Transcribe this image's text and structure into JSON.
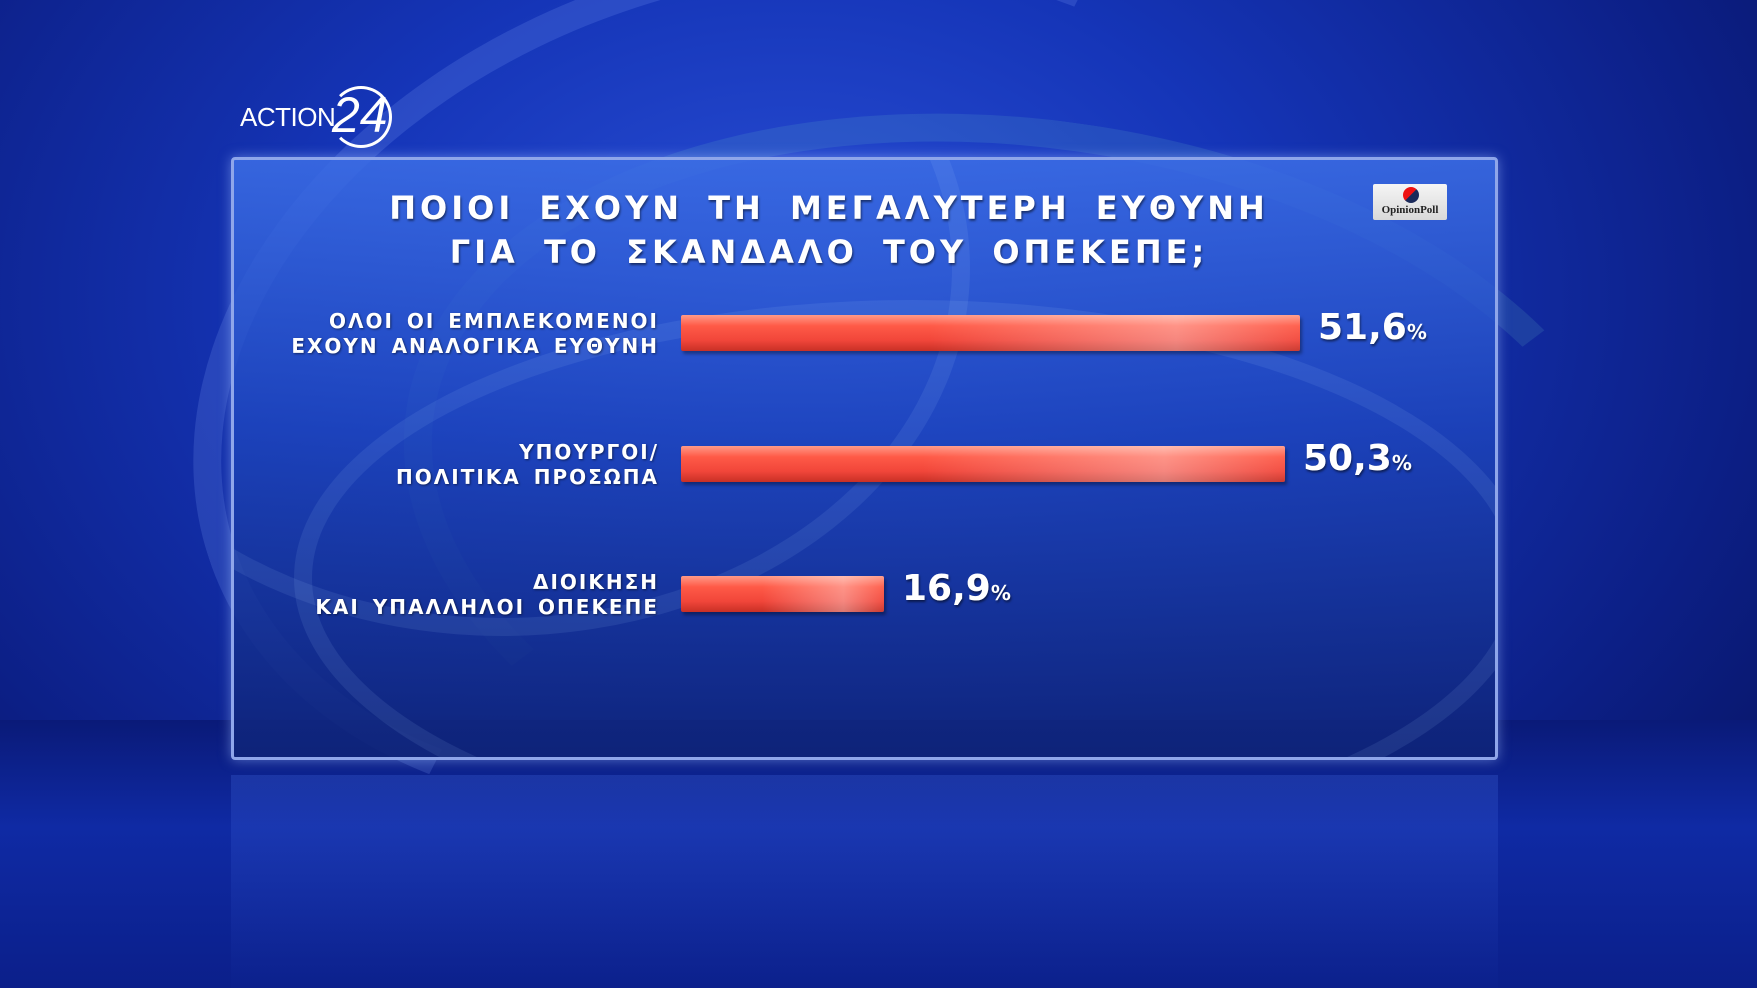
{
  "brand": {
    "logo_text": "ACTION",
    "logo_number": "24"
  },
  "pollster": {
    "name": "OpinionPoll"
  },
  "chart_data": {
    "type": "bar",
    "orientation": "horizontal",
    "title_lines": [
      "ΠΟΙΟΙ ΕΧΟΥΝ ΤΗ ΜΕΓΑΛΥΤΕΡΗ ΕΥΘΥΝΗ",
      "ΓΙΑ ΤΟ ΣΚΑΝΔΑΛΟ ΤΟΥ ΟΠΕΚΕΠΕ;"
    ],
    "categories": [
      {
        "lines": [
          "ΟΛΟΙ ΟΙ ΕΜΠΛΕΚΟΜΕΝΟΙ",
          "ΕΧΟΥΝ ΑΝΑΛΟΓΙΚΑ ΕΥΘΥΝΗ"
        ]
      },
      {
        "lines": [
          "ΥΠΟΥΡΓΟΙ/",
          "ΠΟΛΙΤΙΚΑ ΠΡΟΣΩΠΑ"
        ]
      },
      {
        "lines": [
          "ΔΙΟΙΚΗΣΗ",
          "ΚΑΙ ΥΠΑΛΛΗΛΟΙ ΟΠΕΚΕΠΕ"
        ]
      }
    ],
    "values": [
      51.6,
      50.3,
      16.9
    ],
    "value_labels": [
      "51,6",
      "50,3",
      "16,9"
    ],
    "unit": "%",
    "bar_color": "#f1463a",
    "xlim": [
      0,
      100
    ],
    "grid": false,
    "legend": "none"
  }
}
